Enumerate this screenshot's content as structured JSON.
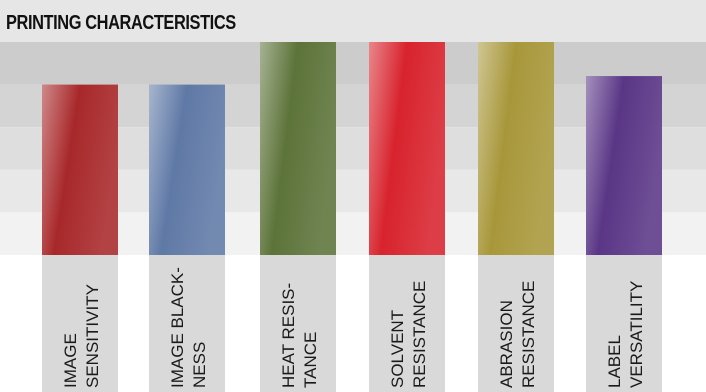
{
  "chart_data": {
    "type": "bar",
    "title": "PRINTING CHARACTERISTICS",
    "categories": [
      [
        "IMAGE",
        "SENSITIVITY"
      ],
      [
        "IMAGE BLACK-",
        "NESS"
      ],
      [
        "HEAT RESIS-",
        "TANCE"
      ],
      [
        "SOLVENT",
        "RESISTANCE"
      ],
      [
        "ABRASION",
        "RESISTANCE"
      ],
      [
        "LABEL",
        "VERSATILITY"
      ]
    ],
    "values": [
      4,
      4,
      5,
      5,
      5,
      4.2
    ],
    "ylim": [
      0,
      5
    ],
    "grid": true,
    "colors": [
      "#a8282a",
      "#5f79a6",
      "#5c7339",
      "#d8232d",
      "#a8973a",
      "#5a3686"
    ],
    "band_colors": [
      "#cccccc",
      "#d4d4d4",
      "#dedede",
      "#e8e8e8",
      "#f2f2f2"
    ],
    "label_bg": "#d9d9d9"
  }
}
